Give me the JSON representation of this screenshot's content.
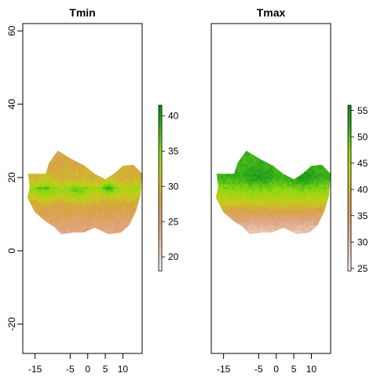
{
  "chart_data": [
    {
      "type": "heatmap",
      "title": "Tmin",
      "x_ticks": [
        -15,
        -5,
        0,
        5,
        10
      ],
      "y_ticks": [
        -20,
        0,
        20,
        40,
        60
      ],
      "xlim": [
        -18.5,
        15.5
      ],
      "ylim": [
        -28,
        62
      ],
      "legend": {
        "position": "right",
        "range": [
          18,
          41.5
        ],
        "ticks": [
          20,
          25,
          30,
          35,
          40
        ],
        "colors": [
          "#f2f2f2",
          "#e8c6b4",
          "#dfa583",
          "#d8a244",
          "#c6cb1c",
          "#91d90f",
          "#3cb21b",
          "#0f8a1a"
        ]
      }
    },
    {
      "type": "heatmap",
      "title": "Tmax",
      "x_ticks": [
        -15,
        -5,
        0,
        5,
        10
      ],
      "y_ticks": [],
      "xlim": [
        -18.5,
        15.5
      ],
      "ylim": [
        -28,
        62
      ],
      "legend": {
        "position": "right",
        "range": [
          24.5,
          56
        ],
        "ticks": [
          25,
          30,
          35,
          40,
          45,
          50,
          55
        ],
        "colors": [
          "#f2f2f2",
          "#e8c6b4",
          "#dfa583",
          "#d8a244",
          "#c6cb1c",
          "#91d90f",
          "#3cb21b",
          "#0f8a1a"
        ]
      }
    }
  ],
  "region_outline": [
    [
      -17,
      21
    ],
    [
      -12,
      21
    ],
    [
      -11,
      24
    ],
    [
      -8.5,
      27.3
    ],
    [
      -4.5,
      25
    ],
    [
      -1,
      23.3
    ],
    [
      2,
      21
    ],
    [
      5,
      19.5
    ],
    [
      7.5,
      21
    ],
    [
      10,
      23.2
    ],
    [
      13,
      23.5
    ],
    [
      15.5,
      21
    ],
    [
      15,
      15
    ],
    [
      13.8,
      11
    ],
    [
      11.8,
      7
    ],
    [
      9.5,
      5
    ],
    [
      6,
      4.5
    ],
    [
      2,
      6.3
    ],
    [
      -1,
      5
    ],
    [
      -4,
      5
    ],
    [
      -7.5,
      4.5
    ],
    [
      -9.5,
      6.5
    ],
    [
      -12,
      8
    ],
    [
      -15,
      10.5
    ],
    [
      -17.2,
      14.5
    ],
    [
      -16.5,
      17.5
    ],
    [
      -17,
      21
    ]
  ]
}
